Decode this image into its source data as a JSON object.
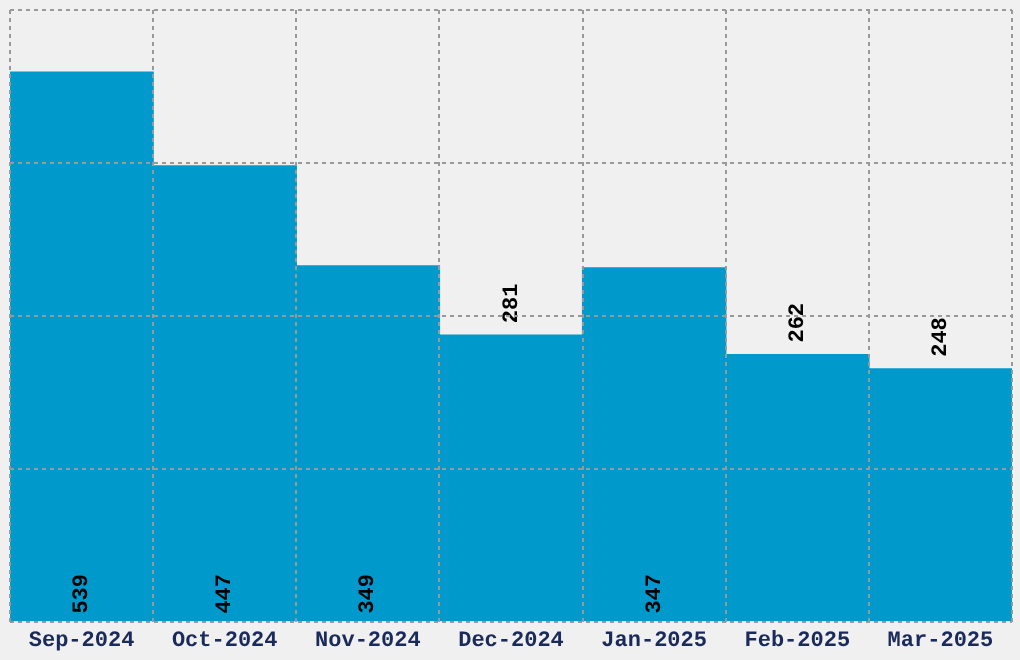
{
  "chart_data": {
    "type": "bar",
    "categories": [
      "Sep-2024",
      "Oct-2024",
      "Nov-2024",
      "Dec-2024",
      "Jan-2025",
      "Feb-2025",
      "Mar-2025"
    ],
    "values": [
      539,
      447,
      349,
      281,
      347,
      262,
      248
    ],
    "color": "#0099cc",
    "ylim": [
      0,
      600
    ],
    "tick_labels": "x",
    "grid": true,
    "data_labels": true
  }
}
